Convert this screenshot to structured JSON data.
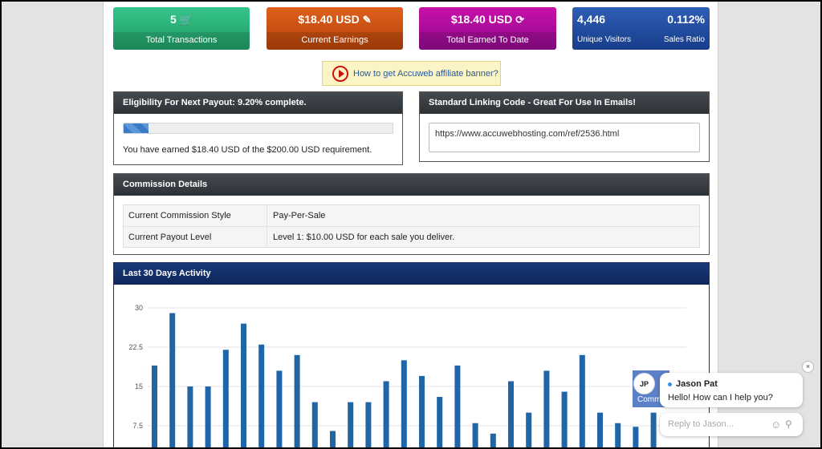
{
  "stats": [
    {
      "value": "5",
      "icon": "cart-icon",
      "glyph": "🛒",
      "label": "Total Transactions",
      "color": "#2aaf74"
    },
    {
      "value": "$18.40 USD",
      "icon": "paperclip-icon",
      "glyph": "✎",
      "label": "Current Earnings",
      "color": "#cc5212"
    },
    {
      "value": "$18.40 USD",
      "icon": "refresh-icon",
      "glyph": "⟳",
      "label": "Total Earned To Date",
      "color": "#b00e9e"
    },
    {
      "visitors_value": "4,446",
      "visitors_label": "Unique Visitors",
      "ratio_value": "0.112%",
      "ratio_label": "Sales Ratio",
      "color": "#234da0"
    }
  ],
  "banner_link": {
    "label": "How to get Accuweb affiliate banner?",
    "icon": "play-icon"
  },
  "eligibility": {
    "title": "Eligibility For Next Payout: 9.20% complete.",
    "progress_fraction": 0.092,
    "text": "You have earned $18.40 USD of the $200.00 USD requirement."
  },
  "linking": {
    "title": "Standard Linking Code - Great For Use In Emails!",
    "value": "https://www.accuwebhosting.com/ref/2536.html"
  },
  "commission": {
    "title": "Commission Details",
    "rows": [
      {
        "label": "Current Commission Style",
        "value": "Pay-Per-Sale"
      },
      {
        "label": "Current Payout Level",
        "value": "Level 1: $10.00 USD for each sale you deliver."
      }
    ]
  },
  "activity": {
    "title": "Last 30 Days Activity"
  },
  "chart_data": {
    "type": "bar",
    "title": "Last 30 Days Activity",
    "y_ticks": [
      "30",
      "22.5",
      "15",
      "7.5"
    ],
    "ylim": [
      0,
      30
    ],
    "grid": true,
    "color": "#1f65a8",
    "values": [
      19,
      29,
      15,
      15,
      22,
      27,
      23,
      18,
      21,
      12,
      6.5,
      12,
      12,
      16,
      20,
      17,
      13,
      19,
      8,
      6,
      16,
      10,
      18,
      14,
      21,
      10,
      8,
      7.3,
      10
    ]
  },
  "chat": {
    "avatar": "JP",
    "name": "Jason Pat",
    "message": "Hello! How can I help you?",
    "placeholder": "Reply to Jason...",
    "close": "×",
    "badge_text": "Comm"
  }
}
